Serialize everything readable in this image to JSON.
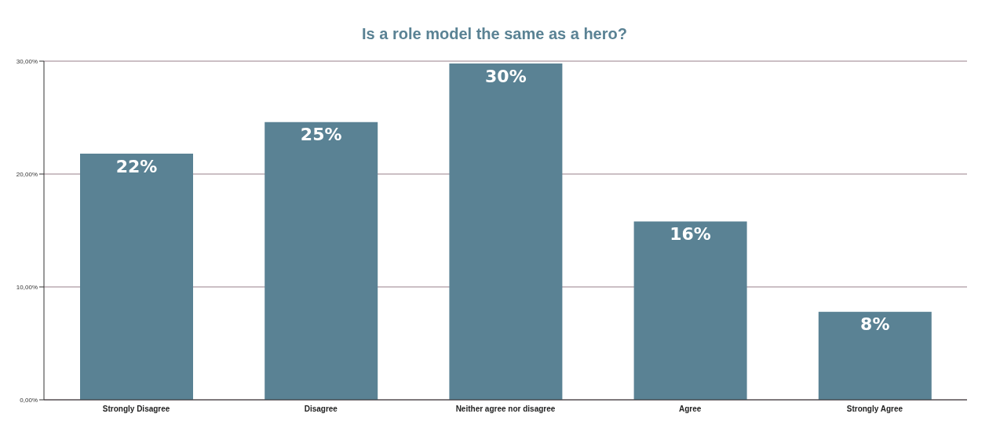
{
  "chart_data": {
    "type": "bar",
    "title": "Is a role model the same as a hero?",
    "categories": [
      "Strongly Disagree",
      "Disagree",
      "Neither agree nor disagree",
      "Agree",
      "Strongly Agree"
    ],
    "values": [
      21.8,
      24.6,
      29.8,
      15.8,
      7.8
    ],
    "value_labels": [
      "22%",
      "25%",
      "30%",
      "16%",
      "8%"
    ],
    "color": "#5a8294",
    "ylim": [
      0,
      30
    ],
    "yticks": [
      {
        "value": 0,
        "label": "0,00%"
      },
      {
        "value": 10,
        "label": "10,00%"
      },
      {
        "value": 20,
        "label": "20,00%"
      },
      {
        "value": 30,
        "label": "30,00%"
      }
    ],
    "grid": "y"
  }
}
